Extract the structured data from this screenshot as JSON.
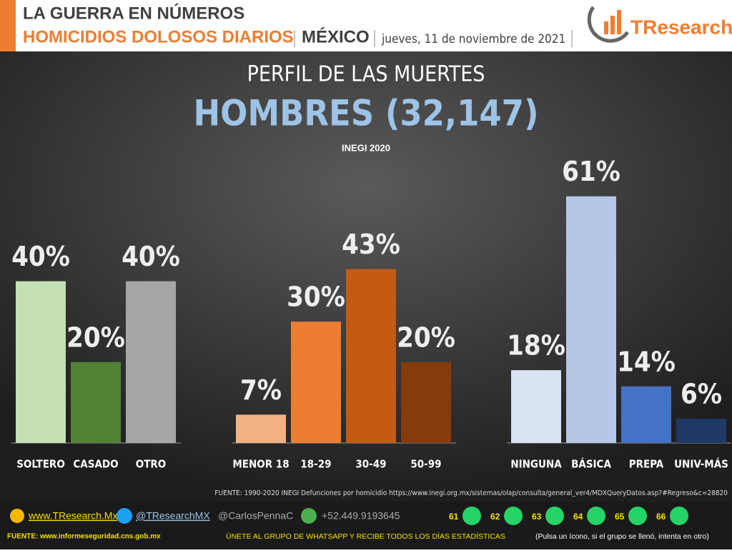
{
  "header": {
    "title": "LA GUERRA EN NÚMEROS",
    "topic": "HOMICIDIOS DOLOSOS DIARIOS",
    "country": "MÉXICO",
    "date": "jueves, 11 de noviembre de 2021",
    "brand": "TResearch"
  },
  "panel": {
    "title": "PERFIL DE LAS MUERTES",
    "subtitle": "HOMBRES (32,147)",
    "source_year": "INEGI  2020",
    "source": "FUENTE: 1990-2020 INEGI Defunciones por homicidio https://www.inegi.org.mx/sistemas/olap/consulta/general_ver4/MDXQueryDatos.asp?#Regreso&c=28820"
  },
  "chart_data": [
    {
      "type": "bar",
      "categories": [
        "SOLTERO",
        "CASADO",
        "OTRO"
      ],
      "values": [
        40,
        20,
        40
      ],
      "value_labels": [
        "40%",
        "20%",
        "40%"
      ],
      "colors": [
        "#c5e0b4",
        "#548235",
        "#a6a6a6"
      ]
    },
    {
      "type": "bar",
      "categories": [
        "MENOR 18",
        "18-29",
        "30-49",
        "50-99"
      ],
      "values": [
        7,
        30,
        43,
        20
      ],
      "value_labels": [
        "7%",
        "30%",
        "43%",
        "20%"
      ],
      "colors": [
        "#f4b183",
        "#ed7d31",
        "#c55a11",
        "#843c0c"
      ]
    },
    {
      "type": "bar",
      "categories": [
        "NINGUNA",
        "BÁSICA",
        "PREPA",
        "UNIV-MÁS"
      ],
      "values": [
        18,
        61,
        14,
        6
      ],
      "value_labels": [
        "18%",
        "61%",
        "14%",
        "6%"
      ],
      "colors": [
        "#dae3f3",
        "#b4c7e7",
        "#4472c4",
        "#203864"
      ]
    }
  ],
  "footer": {
    "web": "www.TResearch.Mx",
    "twitter": "@TResearchMX",
    "twitter2": "@CarlosPennaC",
    "phone": "+52.449.9193645",
    "groups": [
      "61",
      "62",
      "63",
      "64",
      "65",
      "66"
    ],
    "fuente": "FUENTE: www.informeseguridad.cns.gob.mx",
    "cta": "ÚNETE AL GRUPO DE WHATSAPP Y RECIBE TODOS LOS DÍAS ESTADÍSTICAS",
    "cta_note": "(Pulsa un ícono, si el grupo se llenó, intenta en otro)"
  }
}
